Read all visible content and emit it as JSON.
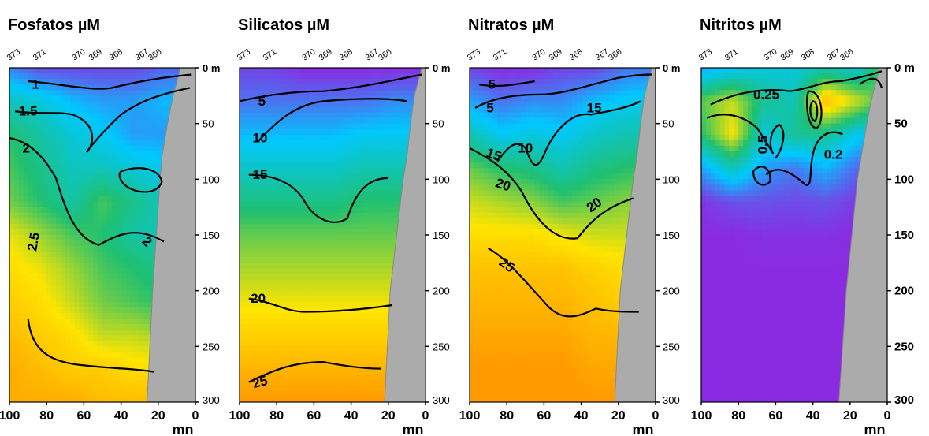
{
  "chart_data": [
    {
      "type": "heatmap",
      "title": "Fosfatos µM",
      "variable": "Fosfatos",
      "unit": "µM",
      "xlabel": "mn",
      "ylabel": "",
      "x_axis": {
        "range": [
          100,
          0
        ],
        "ticks": [
          100,
          80,
          60,
          40,
          20,
          0
        ]
      },
      "y_axis": {
        "range": [
          0,
          300
        ],
        "ticks": [
          "0 m",
          "50",
          "100",
          "150",
          "200",
          "250",
          "300"
        ],
        "inverted": true
      },
      "stations": [
        "373",
        "371",
        "370",
        "369",
        "368",
        "367",
        "366"
      ],
      "station_positions_mn": [
        97,
        83,
        62,
        53,
        42,
        28,
        21
      ],
      "contour_levels": [
        1,
        1.5,
        2,
        2.5
      ],
      "contour_labels": [
        "1",
        "1.5",
        "2",
        "2",
        "2.5"
      ],
      "contour_label_values": [
        1,
        1.5,
        2,
        2,
        2.5
      ],
      "color_scale": [
        "#8a2be2",
        "#00c8ff",
        "#20c070",
        "#ffe500",
        "#ff8c00"
      ],
      "color_range": [
        0.8,
        3
      ],
      "data_surface": [
        [
          1.0,
          1.3,
          1.3,
          1.4,
          1.5,
          1.6,
          1.8,
          1.9,
          2.2,
          2.5,
          2.7
        ],
        [
          1.0,
          1.3,
          1.2,
          1.4,
          1.6,
          1.6,
          1.8,
          1.9,
          2.2,
          2.5,
          2.7
        ],
        [
          0.9,
          1.2,
          1.2,
          1.5,
          1.8,
          1.7,
          1.9,
          2.0,
          2.3,
          2.5,
          2.7
        ],
        [
          0.9,
          1.2,
          1.4,
          1.6,
          2.0,
          1.9,
          2.0,
          2.1,
          2.3,
          2.6,
          2.7
        ],
        [
          0.9,
          1.3,
          1.5,
          1.6,
          1.7,
          2.0,
          2.2,
          2.3,
          2.5,
          2.6,
          2.8
        ],
        [
          0.9,
          1.5,
          1.7,
          1.8,
          1.9,
          2.2,
          2.4,
          2.5,
          2.6,
          2.7,
          2.8
        ],
        [
          1.1,
          1.6,
          1.9,
          2.0,
          2.1,
          2.4,
          2.5,
          2.6,
          2.7,
          2.8,
          2.8
        ]
      ],
      "grid_x_mn": [
        0,
        16,
        33,
        50,
        66,
        83,
        100
      ],
      "grid_y_m": [
        0,
        30,
        60,
        90,
        120,
        150,
        180,
        210,
        240,
        270,
        300
      ],
      "seafloor_mn_at_depth": [
        [
          8,
          0
        ],
        [
          12,
          25
        ],
        [
          15,
          50
        ],
        [
          18,
          80
        ],
        [
          19,
          100
        ],
        [
          23,
          200
        ],
        [
          26,
          300
        ]
      ]
    },
    {
      "type": "heatmap",
      "title": "Silicatos µM",
      "variable": "Silicatos",
      "unit": "µM",
      "xlabel": "mn",
      "ylabel": "",
      "x_axis": {
        "range": [
          100,
          0
        ],
        "ticks": [
          100,
          80,
          60,
          40,
          20,
          0
        ]
      },
      "y_axis": {
        "range": [
          0,
          300
        ],
        "ticks": [
          "0 m",
          "50",
          "100",
          "150",
          "200",
          "250",
          "300"
        ],
        "inverted": true
      },
      "stations": [
        "373",
        "371",
        "370",
        "369",
        "368",
        "367",
        "366"
      ],
      "station_positions_mn": [
        97,
        83,
        62,
        53,
        42,
        28,
        21
      ],
      "contour_levels": [
        5,
        10,
        15,
        20,
        25
      ],
      "contour_labels": [
        "5",
        "10",
        "15",
        "20",
        "25"
      ],
      "contour_label_values": [
        5,
        10,
        15,
        20,
        25
      ],
      "color_scale": [
        "#8a2be2",
        "#00c8ff",
        "#20c070",
        "#ffe500",
        "#ff8c00"
      ],
      "color_range": [
        2,
        28
      ],
      "data_surface": [
        [
          2,
          6,
          9,
          12,
          15,
          17,
          19,
          21,
          23,
          25,
          27
        ],
        [
          2,
          6,
          9,
          12,
          15,
          17,
          19,
          21,
          23,
          25,
          27
        ],
        [
          2,
          5,
          9,
          12,
          15,
          17,
          19,
          21,
          23,
          25,
          27
        ],
        [
          2,
          5,
          8,
          11,
          14,
          17,
          19,
          21,
          23,
          25,
          27
        ],
        [
          2,
          5,
          8,
          11,
          14,
          17,
          19,
          21,
          23,
          25,
          27
        ],
        [
          3,
          5,
          8,
          11,
          14,
          17,
          19,
          21,
          23,
          25,
          27
        ],
        [
          3,
          5,
          8,
          11,
          14,
          17,
          19,
          21,
          23,
          25,
          27
        ]
      ],
      "grid_x_mn": [
        0,
        16,
        33,
        50,
        66,
        83,
        100
      ],
      "grid_y_m": [
        0,
        30,
        60,
        90,
        120,
        150,
        180,
        210,
        240,
        270,
        300
      ],
      "seafloor_mn_at_depth": [
        [
          2,
          0
        ],
        [
          6,
          25
        ],
        [
          8,
          50
        ],
        [
          10,
          80
        ],
        [
          12,
          100
        ],
        [
          19,
          200
        ],
        [
          22,
          300
        ]
      ]
    },
    {
      "type": "heatmap",
      "title": "Nitratos µM",
      "variable": "Nitratos",
      "unit": "µM",
      "xlabel": "mn",
      "ylabel": "",
      "x_axis": {
        "range": [
          100,
          0
        ],
        "ticks": [
          100,
          80,
          60,
          40,
          20,
          0
        ]
      },
      "y_axis": {
        "range": [
          0,
          300
        ],
        "ticks": [
          "0 m",
          "50",
          "100",
          "150",
          "200",
          "250",
          "300"
        ],
        "inverted": true
      },
      "stations": [
        "373",
        "371",
        "370",
        "369",
        "368",
        "367",
        "366"
      ],
      "station_positions_mn": [
        97,
        83,
        62,
        53,
        42,
        28,
        21
      ],
      "contour_levels": [
        5,
        10,
        15,
        20,
        25
      ],
      "contour_labels": [
        "5",
        "5",
        "10",
        "15",
        "15",
        "20",
        "20",
        "25"
      ],
      "contour_label_values": [
        5,
        5,
        10,
        15,
        15,
        20,
        20,
        25
      ],
      "color_scale": [
        "#8a2be2",
        "#00c8ff",
        "#20c070",
        "#ffe500",
        "#ff8c00"
      ],
      "color_range": [
        2,
        28
      ],
      "data_surface": [
        [
          5,
          10,
          12,
          16,
          17,
          20,
          22,
          23,
          25,
          26,
          27
        ],
        [
          5,
          9,
          12,
          15,
          18,
          20,
          22,
          23,
          25,
          26,
          27
        ],
        [
          3,
          8,
          11,
          14,
          17,
          20,
          23,
          24,
          25,
          26,
          27
        ],
        [
          3,
          6,
          9,
          12,
          16,
          21,
          24,
          25,
          26,
          27,
          27
        ],
        [
          2,
          6,
          10,
          14,
          18,
          22,
          24,
          25,
          26,
          27,
          27
        ],
        [
          2,
          5,
          9,
          15,
          19,
          22,
          24,
          25,
          26,
          27,
          27
        ],
        [
          3,
          7,
          12,
          17,
          20,
          22,
          24,
          25,
          26,
          27,
          27
        ]
      ],
      "grid_x_mn": [
        0,
        16,
        33,
        50,
        66,
        83,
        100
      ],
      "grid_y_m": [
        0,
        30,
        60,
        90,
        120,
        150,
        180,
        210,
        240,
        270,
        300
      ],
      "seafloor_mn_at_depth": [
        [
          2,
          0
        ],
        [
          6,
          25
        ],
        [
          8,
          50
        ],
        [
          10,
          80
        ],
        [
          12,
          100
        ],
        [
          19,
          200
        ],
        [
          22,
          300
        ]
      ]
    },
    {
      "type": "heatmap",
      "title": "Nitritos µM",
      "variable": "Nitritos",
      "unit": "µM",
      "xlabel": "mn",
      "ylabel": "",
      "x_axis": {
        "range": [
          100,
          0
        ],
        "ticks": [
          100,
          80,
          60,
          40,
          20,
          0
        ]
      },
      "y_axis": {
        "range": [
          0,
          300
        ],
        "ticks": [
          "0 m",
          "50",
          "100",
          "150",
          "200",
          "250",
          "300"
        ],
        "inverted": true
      },
      "stations": [
        "373",
        "371",
        "370",
        "369",
        "368",
        "367",
        "366"
      ],
      "station_positions_mn": [
        97,
        83,
        62,
        53,
        42,
        28,
        21
      ],
      "contour_levels": [
        0.2,
        0.25,
        0.5
      ],
      "contour_labels": [
        "0.25",
        "0.5",
        "0.2"
      ],
      "contour_label_values": [
        0.25,
        0.5,
        0.2
      ],
      "color_scale": [
        "#8a2be2",
        "#00c8ff",
        "#20c070",
        "#ffe500",
        "#ff8c00"
      ],
      "color_range": [
        0,
        0.8
      ],
      "data_surface": [
        [
          0.5,
          0.4,
          0.2,
          0.08,
          0.01,
          0.0,
          0.0,
          0.0,
          0.0,
          0.0,
          0.0
        ],
        [
          0.25,
          0.55,
          0.22,
          0.08,
          0.02,
          0.0,
          0.0,
          0.0,
          0.0,
          0.0,
          0.0
        ],
        [
          0.3,
          0.7,
          0.35,
          0.18,
          0.05,
          0.01,
          0.0,
          0.0,
          0.0,
          0.0,
          0.0
        ],
        [
          0.25,
          0.3,
          0.35,
          0.1,
          0.04,
          0.01,
          0.0,
          0.0,
          0.0,
          0.0,
          0.0
        ],
        [
          0.25,
          0.35,
          0.25,
          0.15,
          0.05,
          0.01,
          0.0,
          0.0,
          0.0,
          0.0,
          0.0
        ],
        [
          0.2,
          0.55,
          0.6,
          0.3,
          0.05,
          0.0,
          0.0,
          0.0,
          0.0,
          0.0,
          0.0
        ],
        [
          0.15,
          0.45,
          0.4,
          0.15,
          0.01,
          0.0,
          0.0,
          0.0,
          0.0,
          0.0,
          0.0
        ]
      ],
      "grid_x_mn": [
        0,
        16,
        33,
        50,
        66,
        83,
        100
      ],
      "grid_y_m": [
        0,
        30,
        60,
        90,
        120,
        150,
        180,
        210,
        240,
        270,
        300
      ],
      "seafloor_mn_at_depth": [
        [
          4,
          0
        ],
        [
          8,
          25
        ],
        [
          11,
          50
        ],
        [
          14,
          80
        ],
        [
          16,
          100
        ],
        [
          22,
          200
        ],
        [
          26,
          300
        ]
      ]
    }
  ]
}
